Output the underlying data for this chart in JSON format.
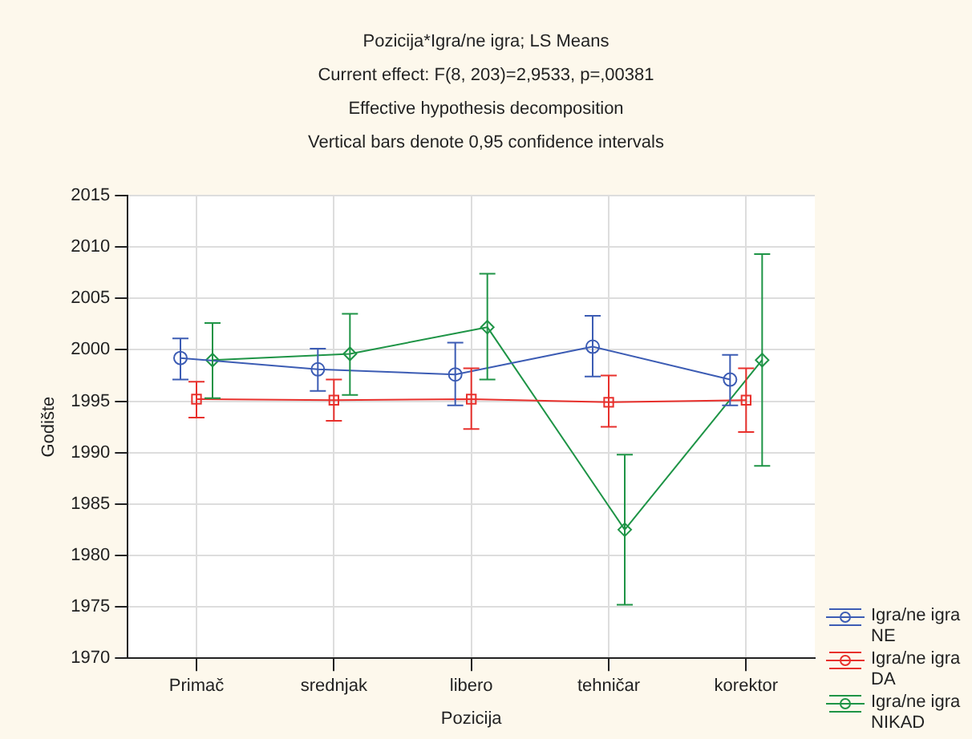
{
  "chart_data": {
    "type": "line",
    "title": "Pozicija*Igra/ne igra; LS Means",
    "subtitle": "Current effect: F(8, 203)=2,9533, p=,00381",
    "annotations": [
      "Effective hypothesis decomposition",
      "Vertical bars denote 0,95 confidence intervals"
    ],
    "xlabel": "Pozicija",
    "ylabel": "Godište",
    "categories": [
      "Primač",
      "srednjak",
      "libero",
      "tehničar",
      "korektor"
    ],
    "series": [
      {
        "name": "Igra/ne igra NE",
        "color": "#3c5cb4",
        "marker": "circle",
        "values": [
          1999.2,
          1998.1,
          1997.6,
          2000.3,
          1997.1
        ],
        "errors": [
          [
            1997.1,
            2001.1
          ],
          [
            1996.0,
            2000.1
          ],
          [
            1994.6,
            2000.7
          ],
          [
            1997.4,
            2003.3
          ],
          [
            1994.6,
            1999.5
          ]
        ]
      },
      {
        "name": "Igra/ne igra DA",
        "color": "#e8302c",
        "marker": "square",
        "values": [
          1995.2,
          1995.1,
          1995.2,
          1994.9,
          1995.1
        ],
        "errors": [
          [
            1993.4,
            1996.9
          ],
          [
            1993.1,
            1997.1
          ],
          [
            1992.3,
            1998.2
          ],
          [
            1992.5,
            1997.5
          ],
          [
            1992.0,
            1998.2
          ]
        ]
      },
      {
        "name": "Igra/ne igra NIKAD",
        "color": "#1e9446",
        "marker": "diamond",
        "values": [
          1999.0,
          1999.6,
          2002.2,
          1982.5,
          1999.0
        ],
        "errors": [
          [
            1995.3,
            2002.6
          ],
          [
            1995.6,
            2003.5
          ],
          [
            1997.1,
            2007.4
          ],
          [
            1975.2,
            1989.8
          ],
          [
            1988.7,
            2009.3
          ]
        ]
      }
    ],
    "ylim": [
      1970,
      2015
    ],
    "yticks": [
      1970,
      1975,
      1980,
      1985,
      1990,
      1995,
      2000,
      2005,
      2010,
      2015
    ],
    "grid": true,
    "legend": "bottom right",
    "line_style": "solid"
  }
}
